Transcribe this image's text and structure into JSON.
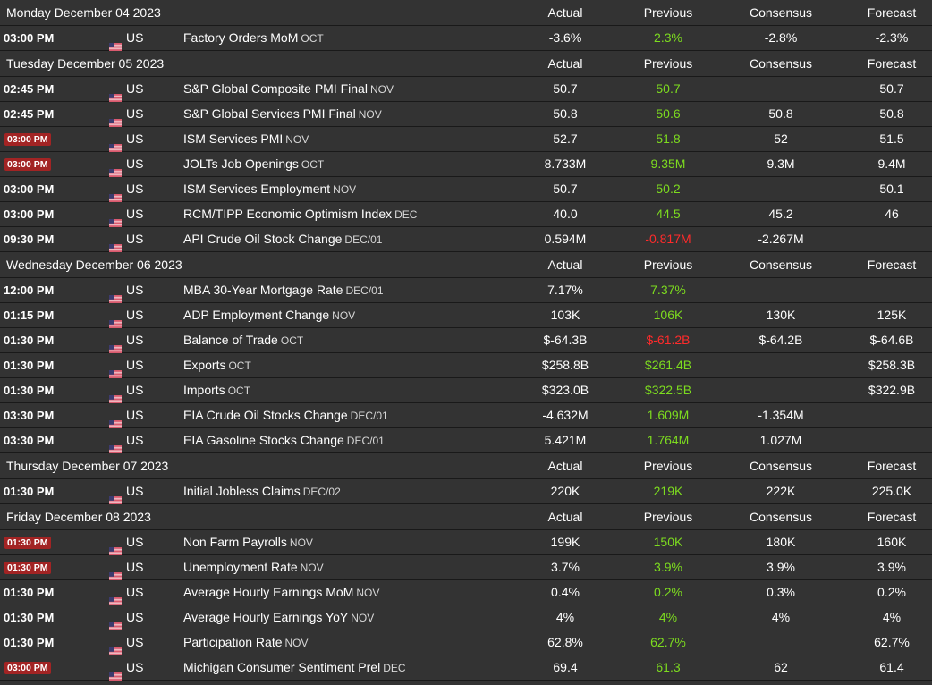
{
  "columns": {
    "actual": "Actual",
    "previous": "Previous",
    "consensus": "Consensus",
    "forecast": "Forecast"
  },
  "colors": {
    "background": "#333333",
    "positive": "#7ddc1f",
    "negative": "#ff2b2b",
    "high_impact_badge": "#a22424"
  },
  "days": [
    {
      "date": "Monday December 04 2023",
      "events": [
        {
          "time": "03:00 PM",
          "high_impact": false,
          "country": "US",
          "flag_icon": "us-flag-icon",
          "name": "Factory Orders MoM",
          "ref": "OCT",
          "actual": "-3.6%",
          "previous": "2.3%",
          "previous_trend": "up",
          "consensus": "-2.8%",
          "forecast": "-2.3%"
        }
      ]
    },
    {
      "date": "Tuesday December 05 2023",
      "events": [
        {
          "time": "02:45 PM",
          "high_impact": false,
          "country": "US",
          "flag_icon": "us-flag-icon",
          "name": "S&P Global Composite PMI Final",
          "ref": "NOV",
          "actual": "50.7",
          "previous": "50.7",
          "previous_trend": "up",
          "consensus": "",
          "forecast": "50.7"
        },
        {
          "time": "02:45 PM",
          "high_impact": false,
          "country": "US",
          "flag_icon": "us-flag-icon",
          "name": "S&P Global Services PMI Final",
          "ref": "NOV",
          "actual": "50.8",
          "previous": "50.6",
          "previous_trend": "up",
          "consensus": "50.8",
          "forecast": "50.8"
        },
        {
          "time": "03:00 PM",
          "high_impact": true,
          "country": "US",
          "flag_icon": "us-flag-icon",
          "name": "ISM Services PMI",
          "ref": "NOV",
          "actual": "52.7",
          "previous": "51.8",
          "previous_trend": "up",
          "consensus": "52",
          "forecast": "51.5"
        },
        {
          "time": "03:00 PM",
          "high_impact": true,
          "country": "US",
          "flag_icon": "us-flag-icon",
          "name": "JOLTs Job Openings",
          "ref": "OCT",
          "actual": "8.733M",
          "previous": "9.35M",
          "previous_trend": "up",
          "consensus": "9.3M",
          "forecast": "9.4M"
        },
        {
          "time": "03:00 PM",
          "high_impact": false,
          "country": "US",
          "flag_icon": "us-flag-icon",
          "name": "ISM Services Employment",
          "ref": "NOV",
          "actual": "50.7",
          "previous": "50.2",
          "previous_trend": "up",
          "consensus": "",
          "forecast": "50.1"
        },
        {
          "time": "03:00 PM",
          "high_impact": false,
          "country": "US",
          "flag_icon": "us-flag-icon",
          "name": "RCM/TIPP Economic Optimism Index",
          "ref": "DEC",
          "actual": "40.0",
          "previous": "44.5",
          "previous_trend": "up",
          "consensus": "45.2",
          "forecast": "46"
        },
        {
          "time": "09:30 PM",
          "high_impact": false,
          "country": "US",
          "flag_icon": "us-flag-icon",
          "name": "API Crude Oil Stock Change",
          "ref": "DEC/01",
          "actual": "0.594M",
          "previous": "-0.817M",
          "previous_trend": "down",
          "consensus": "-2.267M",
          "forecast": ""
        }
      ]
    },
    {
      "date": "Wednesday December 06 2023",
      "events": [
        {
          "time": "12:00 PM",
          "high_impact": false,
          "country": "US",
          "flag_icon": "us-flag-icon",
          "name": "MBA 30-Year Mortgage Rate",
          "ref": "DEC/01",
          "actual": "7.17%",
          "previous": "7.37%",
          "previous_trend": "up",
          "consensus": "",
          "forecast": ""
        },
        {
          "time": "01:15 PM",
          "high_impact": false,
          "country": "US",
          "flag_icon": "us-flag-icon",
          "name": "ADP Employment Change",
          "ref": "NOV",
          "actual": "103K",
          "previous": "106K",
          "previous_trend": "up",
          "consensus": "130K",
          "forecast": "125K"
        },
        {
          "time": "01:30 PM",
          "high_impact": false,
          "country": "US",
          "flag_icon": "us-flag-icon",
          "name": "Balance of Trade",
          "ref": "OCT",
          "actual": "$-64.3B",
          "previous": "$-61.2B",
          "previous_trend": "down",
          "consensus": "$-64.2B",
          "forecast": "$-64.6B"
        },
        {
          "time": "01:30 PM",
          "high_impact": false,
          "country": "US",
          "flag_icon": "us-flag-icon",
          "name": "Exports",
          "ref": "OCT",
          "actual": "$258.8B",
          "previous": "$261.4B",
          "previous_trend": "up",
          "consensus": "",
          "forecast": "$258.3B"
        },
        {
          "time": "01:30 PM",
          "high_impact": false,
          "country": "US",
          "flag_icon": "us-flag-icon",
          "name": "Imports",
          "ref": "OCT",
          "actual": "$323.0B",
          "previous": "$322.5B",
          "previous_trend": "up",
          "consensus": "",
          "forecast": "$322.9B"
        },
        {
          "time": "03:30 PM",
          "high_impact": false,
          "country": "US",
          "flag_icon": "us-flag-icon",
          "name": "EIA Crude Oil Stocks Change",
          "ref": "DEC/01",
          "actual": "-4.632M",
          "previous": "1.609M",
          "previous_trend": "up",
          "consensus": "-1.354M",
          "forecast": ""
        },
        {
          "time": "03:30 PM",
          "high_impact": false,
          "country": "US",
          "flag_icon": "us-flag-icon",
          "name": "EIA Gasoline Stocks Change",
          "ref": "DEC/01",
          "actual": "5.421M",
          "previous": "1.764M",
          "previous_trend": "up",
          "consensus": "1.027M",
          "forecast": ""
        }
      ]
    },
    {
      "date": "Thursday December 07 2023",
      "events": [
        {
          "time": "01:30 PM",
          "high_impact": false,
          "country": "US",
          "flag_icon": "us-flag-icon",
          "name": "Initial Jobless Claims",
          "ref": "DEC/02",
          "actual": "220K",
          "previous": "219K",
          "previous_trend": "up",
          "consensus": "222K",
          "forecast": "225.0K"
        }
      ]
    },
    {
      "date": "Friday December 08 2023",
      "events": [
        {
          "time": "01:30 PM",
          "high_impact": true,
          "country": "US",
          "flag_icon": "us-flag-icon",
          "name": "Non Farm Payrolls",
          "ref": "NOV",
          "actual": "199K",
          "previous": "150K",
          "previous_trend": "up",
          "consensus": "180K",
          "forecast": "160K"
        },
        {
          "time": "01:30 PM",
          "high_impact": true,
          "country": "US",
          "flag_icon": "us-flag-icon",
          "name": "Unemployment Rate",
          "ref": "NOV",
          "actual": "3.7%",
          "previous": "3.9%",
          "previous_trend": "up",
          "consensus": "3.9%",
          "forecast": "3.9%"
        },
        {
          "time": "01:30 PM",
          "high_impact": false,
          "country": "US",
          "flag_icon": "us-flag-icon",
          "name": "Average Hourly Earnings MoM",
          "ref": "NOV",
          "actual": "0.4%",
          "previous": "0.2%",
          "previous_trend": "up",
          "consensus": "0.3%",
          "forecast": "0.2%"
        },
        {
          "time": "01:30 PM",
          "high_impact": false,
          "country": "US",
          "flag_icon": "us-flag-icon",
          "name": "Average Hourly Earnings YoY",
          "ref": "NOV",
          "actual": "4%",
          "previous": "4%",
          "previous_trend": "up",
          "consensus": "4%",
          "forecast": "4%"
        },
        {
          "time": "01:30 PM",
          "high_impact": false,
          "country": "US",
          "flag_icon": "us-flag-icon",
          "name": "Participation Rate",
          "ref": "NOV",
          "actual": "62.8%",
          "previous": "62.7%",
          "previous_trend": "up",
          "consensus": "",
          "forecast": "62.7%"
        },
        {
          "time": "03:00 PM",
          "high_impact": true,
          "country": "US",
          "flag_icon": "us-flag-icon",
          "name": "Michigan Consumer Sentiment Prel",
          "ref": "DEC",
          "actual": "69.4",
          "previous": "61.3",
          "previous_trend": "up",
          "consensus": "62",
          "forecast": "61.4"
        }
      ]
    }
  ]
}
